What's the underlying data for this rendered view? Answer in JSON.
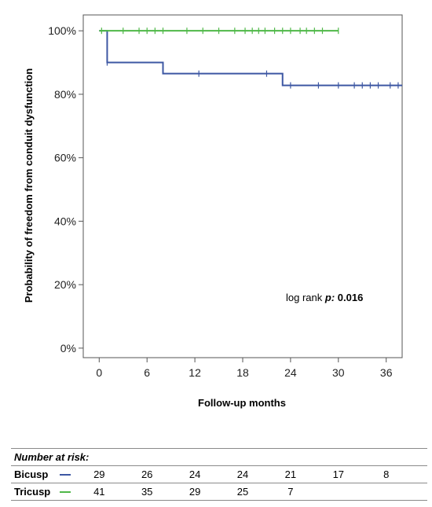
{
  "chart_data": {
    "type": "line",
    "subtype": "kaplan-meier",
    "title": "",
    "xlabel": "Follow-up months",
    "ylabel": "Probability of freedom from conduit dysfunction",
    "xlim": [
      -2,
      38
    ],
    "ylim": [
      -3,
      105
    ],
    "x_ticks": [
      0,
      6,
      12,
      18,
      24,
      30,
      36
    ],
    "y_ticks": [
      0,
      20,
      40,
      60,
      80,
      100
    ],
    "y_tick_labels": [
      "0%",
      "20%",
      "40%",
      "60%",
      "80%",
      "100%"
    ],
    "grid": false,
    "annotation": {
      "text_prefix": "log rank ",
      "p_symbol": "p:",
      "p_value": " 0.016"
    },
    "series": [
      {
        "name": "Bicusp",
        "color": "#3d57a3",
        "steps": [
          [
            0,
            100
          ],
          [
            1,
            90
          ],
          [
            8,
            86.5
          ],
          [
            23,
            82.8
          ],
          [
            38,
            82.8
          ]
        ],
        "censored": [
          [
            1,
            90
          ],
          [
            12.5,
            86.5
          ],
          [
            21,
            86.5
          ],
          [
            24,
            82.8
          ],
          [
            27.5,
            82.8
          ],
          [
            30,
            82.8
          ],
          [
            32,
            82.8
          ],
          [
            33,
            82.8
          ],
          [
            34,
            82.8
          ],
          [
            35,
            82.8
          ],
          [
            36.5,
            82.8
          ],
          [
            37.5,
            82.8
          ]
        ]
      },
      {
        "name": "Tricusp",
        "color": "#4fb848",
        "steps": [
          [
            0,
            100
          ],
          [
            30,
            100
          ]
        ],
        "censored": [
          [
            0.3,
            100
          ],
          [
            3,
            100
          ],
          [
            5,
            100
          ],
          [
            6,
            100
          ],
          [
            7,
            100
          ],
          [
            8,
            100
          ],
          [
            11,
            100
          ],
          [
            13,
            100
          ],
          [
            15,
            100
          ],
          [
            17,
            100
          ],
          [
            18.3,
            100
          ],
          [
            19.2,
            100
          ],
          [
            20,
            100
          ],
          [
            20.8,
            100
          ],
          [
            22,
            100
          ],
          [
            23,
            100
          ],
          [
            24,
            100
          ],
          [
            25.2,
            100
          ],
          [
            26,
            100
          ],
          [
            27,
            100
          ],
          [
            28,
            100
          ],
          [
            30,
            100
          ]
        ]
      }
    ]
  },
  "risk_table": {
    "title": "Number at risk:",
    "times": [
      0,
      6,
      12,
      18,
      24,
      30,
      36
    ],
    "rows": [
      {
        "label": "Bicusp",
        "color": "#3d57a3",
        "values": [
          "29",
          "26",
          "24",
          "24",
          "21",
          "17",
          "8"
        ]
      },
      {
        "label": "Tricusp",
        "color": "#4fb848",
        "values": [
          "41",
          "35",
          "29",
          "25",
          "7"
        ]
      }
    ]
  }
}
